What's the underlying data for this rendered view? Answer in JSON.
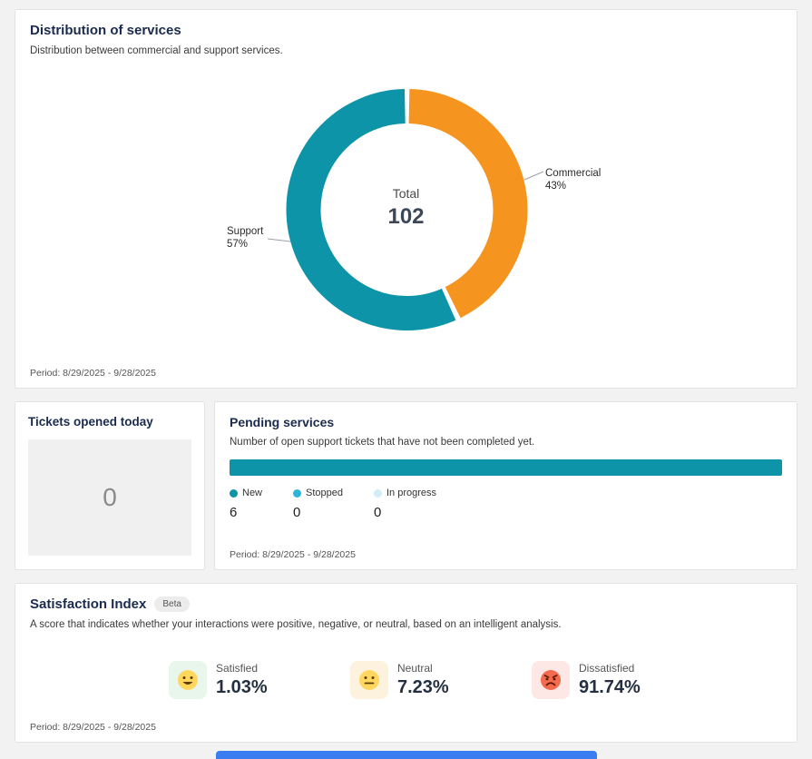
{
  "distribution_card": {
    "title": "Distribution of services",
    "subtitle": "Distribution between commercial and support services.",
    "center_label": "Total",
    "center_value": "102",
    "labels": {
      "commercial_name": "Commercial",
      "commercial_pct": "43%",
      "support_name": "Support",
      "support_pct": "57%"
    },
    "period": "Period: 8/29/2025 - 9/28/2025"
  },
  "chart_data": [
    {
      "type": "pie",
      "title": "Distribution of services",
      "donut": true,
      "slices": [
        {
          "label": "Commercial",
          "value": 43,
          "color": "#f5941f"
        },
        {
          "label": "Support",
          "value": 57,
          "color": "#0d94a8"
        }
      ],
      "center": {
        "label": "Total",
        "value": 102
      },
      "legend_position": "labels-with-leader-lines"
    },
    {
      "type": "bar",
      "title": "Pending services",
      "orientation": "horizontal",
      "categories": [
        "New",
        "Stopped",
        "In progress"
      ],
      "values": [
        6,
        0,
        0
      ],
      "colors": [
        "#0d94a8",
        "#2cb5d8",
        "#cfeef6"
      ],
      "xlim": [
        0,
        6
      ],
      "grid": false
    }
  ],
  "tickets_card": {
    "title": "Tickets opened today",
    "value": "0"
  },
  "pending_card": {
    "title": "Pending services",
    "subtitle": "Number of open support tickets that have not been completed yet.",
    "legend": [
      {
        "label": "New",
        "value": "6",
        "color": "#0d94a8"
      },
      {
        "label": "Stopped",
        "value": "0",
        "color": "#2cb5d8"
      },
      {
        "label": "In progress",
        "value": "0",
        "color": "#cfeef6"
      }
    ],
    "period": "Period: 8/29/2025 - 9/28/2025"
  },
  "satisfaction_card": {
    "title": "Satisfaction Index",
    "badge": "Beta",
    "subtitle": "A score that indicates whether your interactions were positive, negative, or neutral, based on an intelligent analysis.",
    "stats": [
      {
        "label": "Satisfied",
        "value": "1.03%",
        "icon": "smile-face-icon",
        "tile_bg": "#e8f6ec",
        "face_color": "#ffd75e"
      },
      {
        "label": "Neutral",
        "value": "7.23%",
        "icon": "neutral-face-icon",
        "tile_bg": "#fdf2de",
        "face_color": "#ffd75e"
      },
      {
        "label": "Dissatisfied",
        "value": "91.74%",
        "icon": "angry-face-icon",
        "tile_bg": "#fde8e6",
        "face_color": "#f26b4e"
      }
    ],
    "period": "Period: 8/29/2025 - 9/28/2025"
  }
}
